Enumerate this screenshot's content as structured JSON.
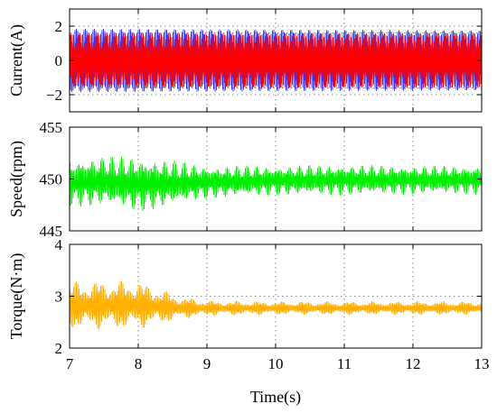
{
  "chart_data": [
    {
      "type": "line",
      "ylabel": "Current(A)",
      "xlim": [
        7,
        13
      ],
      "ylim": [
        -3,
        3
      ],
      "yticks": [
        -2,
        0,
        2
      ],
      "grid": true,
      "series": [
        {
          "color": "#3030ff",
          "envelope": {
            "x": [
              7,
              13
            ],
            "min": [
              -1.85,
              -1.75
            ],
            "max": [
              1.85,
              1.75
            ]
          }
        },
        {
          "color": "#ff0000",
          "envelope": {
            "x": [
              7,
              13
            ],
            "min": [
              -1.6,
              -1.6
            ],
            "max": [
              1.6,
              1.6
            ]
          }
        }
      ]
    },
    {
      "type": "line",
      "ylabel": "Speed(rpm)",
      "xlim": [
        7,
        13
      ],
      "ylim": [
        445,
        455
      ],
      "yticks": [
        445,
        450,
        455
      ],
      "grid": true,
      "series": [
        {
          "color": "#00ee00",
          "envelope": {
            "x": [
              7,
              7.5,
              8,
              8.5,
              9,
              10,
              11,
              12,
              13
            ],
            "min": [
              447.3,
              447.4,
              446.8,
              447.4,
              448.1,
              448.4,
              448.4,
              448.5,
              448.5
            ],
            "max": [
              452.0,
              452.2,
              452.2,
              451.8,
              451.3,
              451.3,
              451.4,
              451.3,
              451.3
            ]
          }
        }
      ]
    },
    {
      "type": "line",
      "ylabel": "Torque(N·m)",
      "xlim": [
        7,
        13
      ],
      "ylim": [
        2,
        4
      ],
      "yticks": [
        2,
        3,
        4
      ],
      "xticks": [
        7,
        8,
        9,
        10,
        11,
        12,
        13
      ],
      "xlabel": "Time(s)",
      "grid": true,
      "series": [
        {
          "color": "#ffb000",
          "envelope": {
            "x": [
              7,
              7.5,
              8,
              8.3,
              8.6,
              9,
              10,
              11,
              12,
              13
            ],
            "min": [
              2.36,
              2.36,
              2.36,
              2.45,
              2.55,
              2.62,
              2.64,
              2.64,
              2.64,
              2.64
            ],
            "max": [
              3.28,
              3.3,
              3.3,
              3.15,
              3.0,
              2.92,
              2.9,
              2.9,
              2.9,
              2.9
            ]
          }
        }
      ]
    }
  ]
}
